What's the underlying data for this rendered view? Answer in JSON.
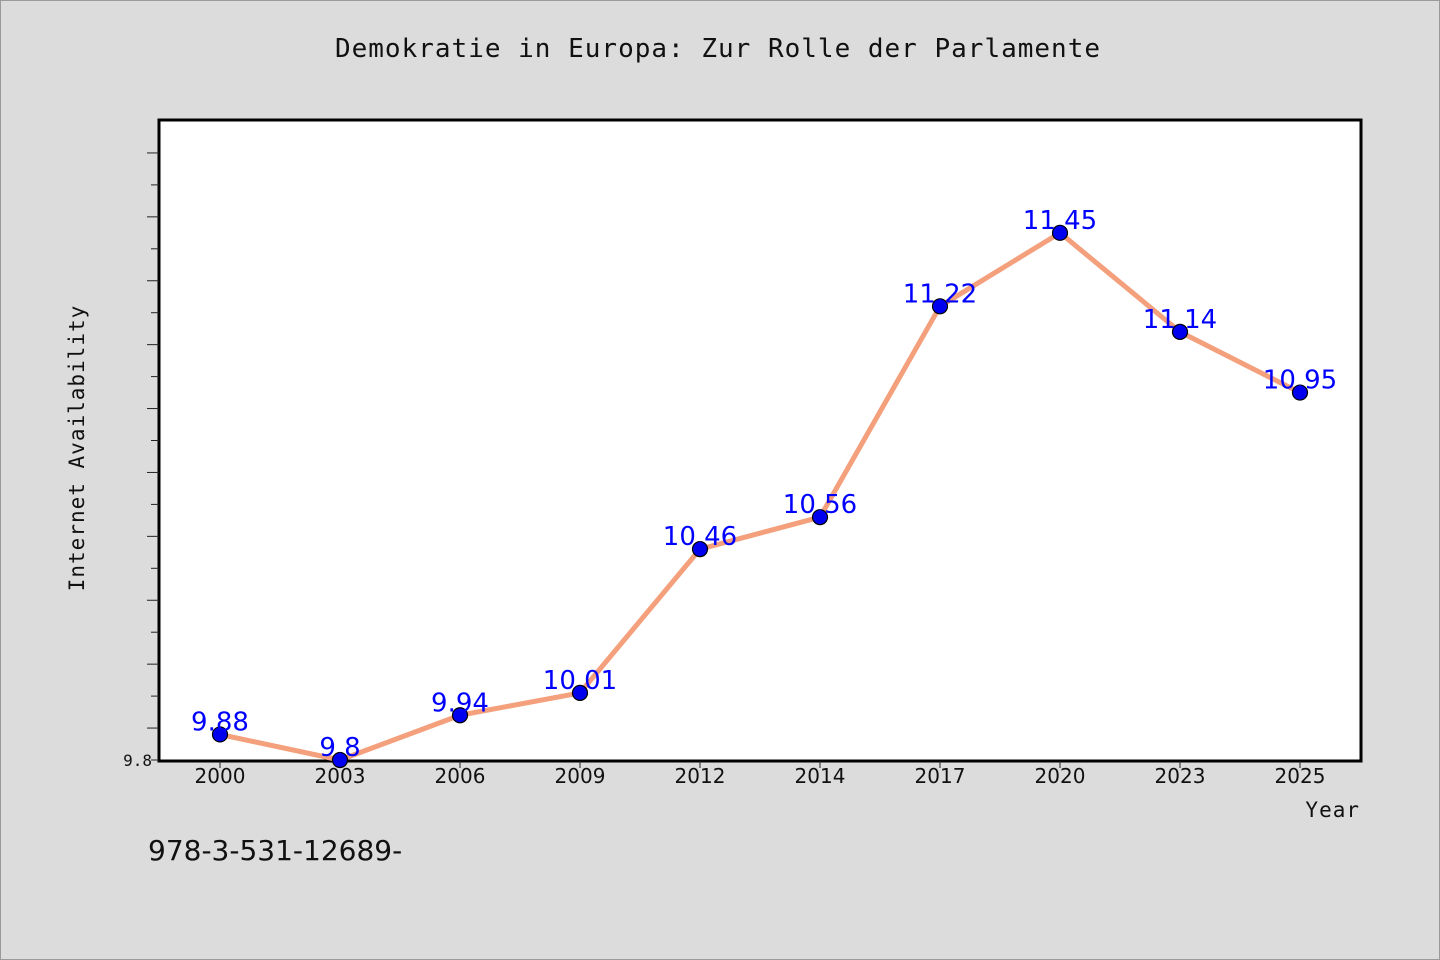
{
  "title": "Demokratie in Europa: Zur Rolle der Parlamente",
  "isbn_text": "978-3-531-12689-",
  "chart_data": {
    "type": "line",
    "title": "Demokratie in Europa: Zur Rolle der Parlamente",
    "xlabel": "Year",
    "ylabel": "Internet Availability",
    "categories": [
      "2000",
      "2003",
      "2006",
      "2009",
      "2012",
      "2014",
      "2017",
      "2020",
      "2023",
      "2025"
    ],
    "series": [
      {
        "values": [
          9.88,
          9.8,
          9.94,
          10.01,
          10.46,
          10.56,
          11.22,
          11.45,
          11.14,
          10.95
        ]
      }
    ],
    "data_labels": [
      "9.88",
      "9.8",
      "9.94",
      "10.01",
      "10.46",
      "10.56",
      "11.22",
      "11.45",
      "11.14",
      "10.95"
    ],
    "y_tick_labels": [
      "9.8"
    ],
    "ylim": [
      9.8,
      11.8
    ],
    "grid": false,
    "legend": "none",
    "colors": {
      "line": "#f4a07c",
      "marker": "#0000ee",
      "marker_edge": "#000000",
      "data_label": "#0000ff",
      "plot_background": "#ffffff",
      "figure_background": "#dcdcdc"
    }
  }
}
